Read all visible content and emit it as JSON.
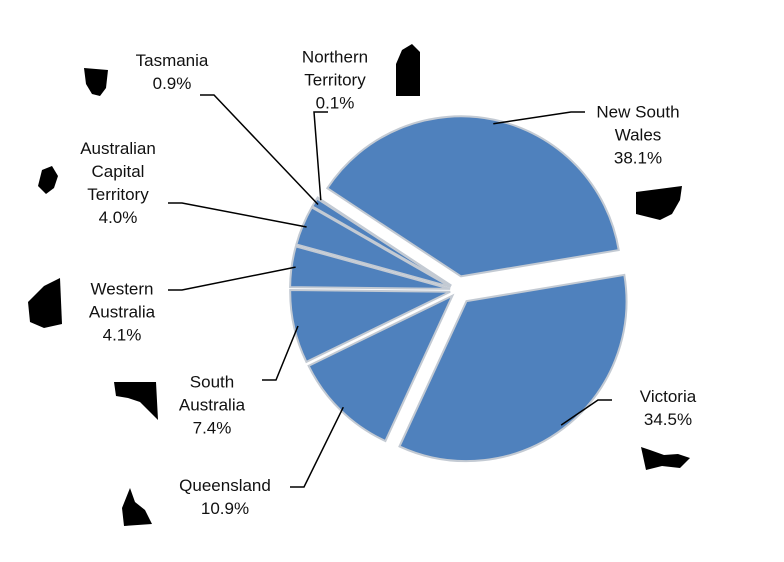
{
  "chart_data": {
    "type": "pie",
    "categories": [
      "New South Wales",
      "Victoria",
      "Queensland",
      "South Australia",
      "Western Australia",
      "Australian Capital Territory",
      "Tasmania",
      "Northern Territory"
    ],
    "values": [
      38.1,
      34.5,
      10.9,
      7.4,
      4.1,
      4.0,
      0.9,
      0.1
    ],
    "value_labels": [
      "38.1%",
      "34.5%",
      "10.9%",
      "7.4%",
      "4.1%",
      "4.0%",
      "0.9%",
      "0.1%"
    ],
    "color": "#4f81bd"
  }
}
